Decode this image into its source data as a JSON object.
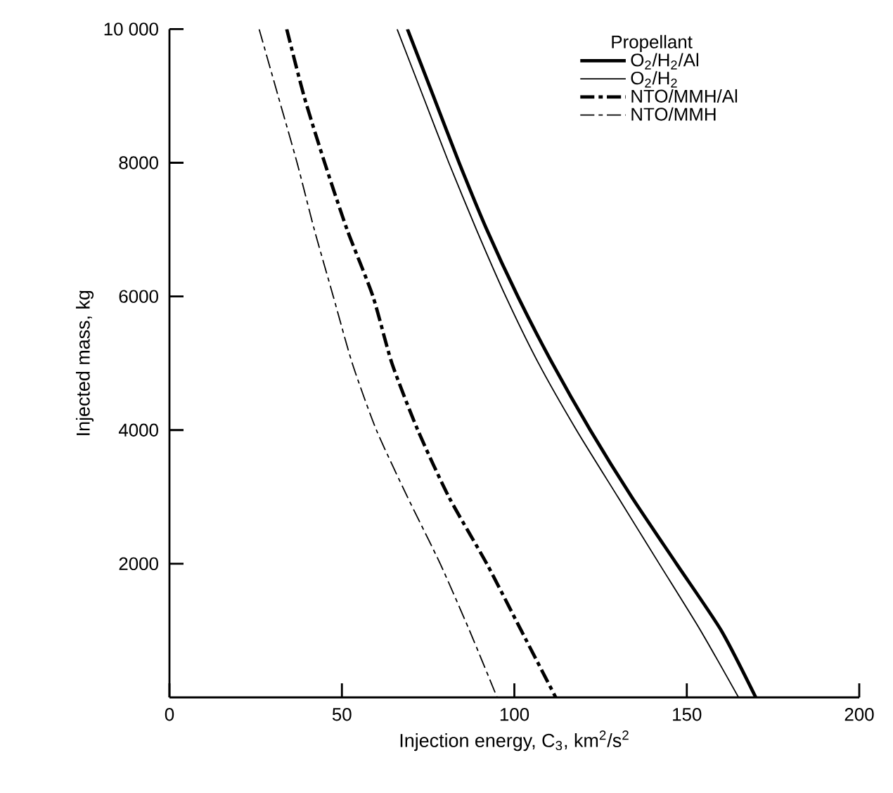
{
  "chart_data": {
    "type": "line",
    "xlabel": "Injection energy, C$_{3}$, km$^{2}$/s$^{2}$",
    "ylabel": "Injected mass, kg",
    "legend_title": "Propellant",
    "legend": "top right",
    "xlim": [
      0,
      200
    ],
    "ylim": [
      0,
      10000
    ],
    "xticks": [
      0,
      50,
      100,
      150,
      200
    ],
    "yticks": [
      2000,
      4000,
      6000,
      8000,
      {
        "value": 10000,
        "label": "10 000"
      }
    ],
    "series": [
      {
        "name": "O$_{2}$/H$_{2}$/Al",
        "color": "#000000",
        "line_style": "solid",
        "x": [
          69,
          76.5,
          84,
          92,
          101,
          111,
          122,
          134,
          147,
          160,
          170
        ],
        "values": [
          10000,
          9000,
          8000,
          7000,
          6000,
          5000,
          4000,
          3000,
          2000,
          1000,
          0
        ]
      },
      {
        "name": "O$_{2}$/H$_{2}$",
        "color": "#000000",
        "line_style": "solid",
        "x": [
          66,
          73.5,
          81,
          89,
          97.5,
          107,
          118,
          130,
          142,
          154,
          165
        ],
        "values": [
          10000,
          9000,
          8000,
          7000,
          6000,
          5000,
          4000,
          3000,
          2000,
          1000,
          0
        ]
      },
      {
        "name": "NTO/MMH/Al",
        "color": "#000000",
        "line_style": "dashdot",
        "x": [
          34,
          39,
          45,
          51.5,
          59,
          64.5,
          72,
          81,
          92,
          102,
          112
        ],
        "values": [
          10000,
          9000,
          8000,
          7000,
          6000,
          5000,
          4000,
          3000,
          2000,
          1000,
          0
        ]
      },
      {
        "name": "NTO/MMH",
        "color": "#000000",
        "line_style": "dashdot",
        "x": [
          26,
          31.5,
          37,
          42,
          47.5,
          53,
          60,
          69,
          78.5,
          87,
          95
        ],
        "values": [
          10000,
          9000,
          8000,
          7000,
          6000,
          5000,
          4000,
          3000,
          2000,
          1000,
          0
        ]
      }
    ]
  }
}
